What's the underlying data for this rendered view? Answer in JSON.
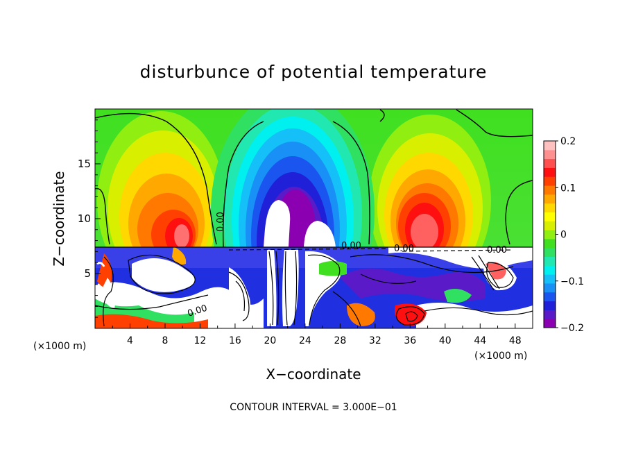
{
  "chart_data": {
    "type": "heatmap",
    "title": "disturbunce of potential temperature",
    "xlabel": "X−coordinate",
    "ylabel": "Z−coordinate",
    "x_unit_left": "(×1000 m)",
    "x_unit_right": "(×1000 m)",
    "x_ticks": [
      "4",
      "8",
      "12",
      "16",
      "20",
      "24",
      "28",
      "32",
      "36",
      "40",
      "44",
      "48"
    ],
    "x_tick_values": [
      4,
      8,
      12,
      16,
      20,
      24,
      28,
      32,
      36,
      40,
      44,
      48
    ],
    "y_ticks": [
      "5",
      "10",
      "15"
    ],
    "y_tick_values": [
      5,
      10,
      15
    ],
    "xlim": [
      0,
      50
    ],
    "ylim": [
      0,
      20
    ],
    "contour_labels": [
      "0.00",
      "0.00",
      "0.00",
      "0.00",
      "0.00"
    ],
    "footer": "CONTOUR INTERVAL = 3.000E−01",
    "colorbar": {
      "ticks": [
        "0.2",
        "0.1",
        "0",
        "−0.1",
        "−0.2"
      ],
      "tick_values": [
        0.2,
        0.1,
        0,
        -0.1,
        -0.2
      ],
      "range": [
        -0.2,
        0.2
      ],
      "colors": [
        "#8b00b0",
        "#5a1ac8",
        "#2020d8",
        "#1a55f0",
        "#1890f5",
        "#15c0f8",
        "#00f0f0",
        "#20e8b0",
        "#30e060",
        "#40e020",
        "#90ee10",
        "#d8f000",
        "#ffff00",
        "#ffd800",
        "#ffa800",
        "#ff7800",
        "#ff4000",
        "#ff1010",
        "#ff5050",
        "#ff9090",
        "#ffc0c0"
      ]
    },
    "grid": false
  }
}
